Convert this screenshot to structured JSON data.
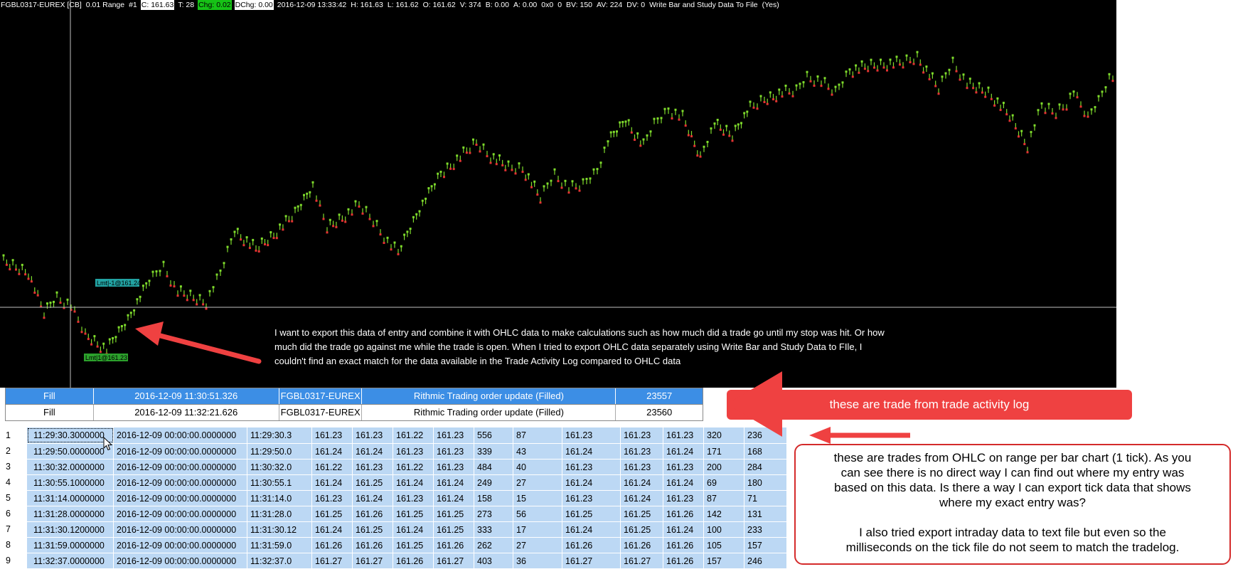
{
  "chart": {
    "header_items": [
      {
        "text": "FGBL0317-EUREX [CB]",
        "style": "plain"
      },
      {
        "text": "0.01 Range",
        "style": "plain"
      },
      {
        "text": "#1",
        "style": "plain"
      },
      {
        "text": "C: 161.63",
        "style": "box-white"
      },
      {
        "text": "T: 28",
        "style": "plain"
      },
      {
        "text": "Chg: 0.02",
        "style": "box-green"
      },
      {
        "text": "DChg: 0.00",
        "style": "box-white"
      },
      {
        "text": "2016-12-09 13:33:42",
        "style": "plain"
      },
      {
        "text": "H: 161.63",
        "style": "plain"
      },
      {
        "text": "L: 161.62",
        "style": "plain"
      },
      {
        "text": "O: 161.62",
        "style": "plain"
      },
      {
        "text": "V: 374",
        "style": "plain"
      },
      {
        "text": "B: 0.00",
        "style": "plain"
      },
      {
        "text": "A: 0.00",
        "style": "plain"
      },
      {
        "text": "0x0",
        "style": "plain"
      },
      {
        "text": "0",
        "style": "plain"
      },
      {
        "text": "BV: 150",
        "style": "plain"
      },
      {
        "text": "AV: 224",
        "style": "plain"
      },
      {
        "text": "DV: 0",
        "style": "plain"
      },
      {
        "text": "Write Bar and Study Data To File",
        "style": "plain"
      },
      {
        "text": "(Yes)",
        "style": "plain"
      }
    ],
    "order_labels": {
      "sell": "Lmt|-1@161.24",
      "buy": "Lmt|1@161.23"
    },
    "note_lines": [
      "I want to export this data of entry and combine it with OHLC data to make calculations such as how much did a trade go until my stop was hit. Or how",
      "much did the trade go against me while the trade is open. When I tried to export OHLC data separately using Write Bar and Study Data to FIle, I",
      "couldn't find an exact match for the data available in the Trade Activity Log compared to OHLC data"
    ],
    "colors": {
      "background": "#000000",
      "up_bar": "#7fdc2c",
      "down_bar": "#e53232",
      "crosshair": "#bfbfbf"
    }
  },
  "activity_log": {
    "rows": [
      {
        "type": "Fill",
        "datetime": "2016-12-09 11:30:51.326",
        "symbol": "FGBL0317-EUREX",
        "description": "Rithmic Trading order update (Filled)",
        "id": "23557",
        "selected": true
      },
      {
        "type": "Fill",
        "datetime": "2016-12-09 11:32:21.626",
        "symbol": "FGBL0317-EUREX",
        "description": "Rithmic Trading order update (Filled)",
        "id": "23560",
        "selected": false
      }
    ]
  },
  "ohlc_grid": {
    "rows": [
      [
        "1",
        "11:29:30.3000000",
        "2016-12-09 00:00:00.0000000",
        "11:29:30.3",
        "161.23",
        "161.23",
        "161.22",
        "161.23",
        "556",
        "87",
        "161.23",
        "161.23",
        "161.23",
        "320",
        "236"
      ],
      [
        "2",
        "11:29:50.0000000",
        "2016-12-09 00:00:00.0000000",
        "11:29:50.0",
        "161.24",
        "161.24",
        "161.23",
        "161.23",
        "339",
        "43",
        "161.24",
        "161.23",
        "161.24",
        "171",
        "168"
      ],
      [
        "3",
        "11:30:32.0000000",
        "2016-12-09 00:00:00.0000000",
        "11:30:32.0",
        "161.22",
        "161.23",
        "161.22",
        "161.23",
        "484",
        "40",
        "161.23",
        "161.23",
        "161.23",
        "200",
        "284"
      ],
      [
        "4",
        "11:30:55.1000000",
        "2016-12-09 00:00:00.0000000",
        "11:30:55.1",
        "161.24",
        "161.25",
        "161.24",
        "161.24",
        "249",
        "27",
        "161.24",
        "161.24",
        "161.24",
        "69",
        "180"
      ],
      [
        "5",
        "11:31:14.0000000",
        "2016-12-09 00:00:00.0000000",
        "11:31:14.0",
        "161.23",
        "161.24",
        "161.23",
        "161.24",
        "158",
        "15",
        "161.23",
        "161.24",
        "161.23",
        "87",
        "71"
      ],
      [
        "6",
        "11:31:28.0000000",
        "2016-12-09 00:00:00.0000000",
        "11:31:28.0",
        "161.25",
        "161.26",
        "161.25",
        "161.25",
        "273",
        "56",
        "161.25",
        "161.25",
        "161.26",
        "142",
        "131"
      ],
      [
        "7",
        "11:31:30.1200000",
        "2016-12-09 00:00:00.0000000",
        "11:31:30.12",
        "161.24",
        "161.25",
        "161.24",
        "161.25",
        "333",
        "17",
        "161.24",
        "161.25",
        "161.24",
        "100",
        "233"
      ],
      [
        "8",
        "11:31:59.0000000",
        "2016-12-09 00:00:00.0000000",
        "11:31:59.0",
        "161.26",
        "161.26",
        "161.25",
        "161.26",
        "262",
        "27",
        "161.26",
        "161.26",
        "161.26",
        "105",
        "157"
      ],
      [
        "9",
        "11:32:37.0000000",
        "2016-12-09 00:00:00.0000000",
        "11:32:37.0",
        "161.27",
        "161.27",
        "161.26",
        "161.27",
        "403",
        "36",
        "161.27",
        "161.27",
        "161.26",
        "157",
        "246"
      ]
    ]
  },
  "callouts": {
    "activity_log_note": "these are trade from trade activity log",
    "ohlc_note_lines": [
      "these are trades from OHLC on range per bar chart (1 tick). As you",
      "can see there is no direct way I can find out where my entry was",
      "based on this data. Is there a way I can export tick data that shows",
      "where my exact entry was?",
      "",
      "I also tried export intraday data to text file but even so the",
      "milliseconds on the tick file do not seem to match the tradelog."
    ],
    "color": "#ef4141"
  }
}
